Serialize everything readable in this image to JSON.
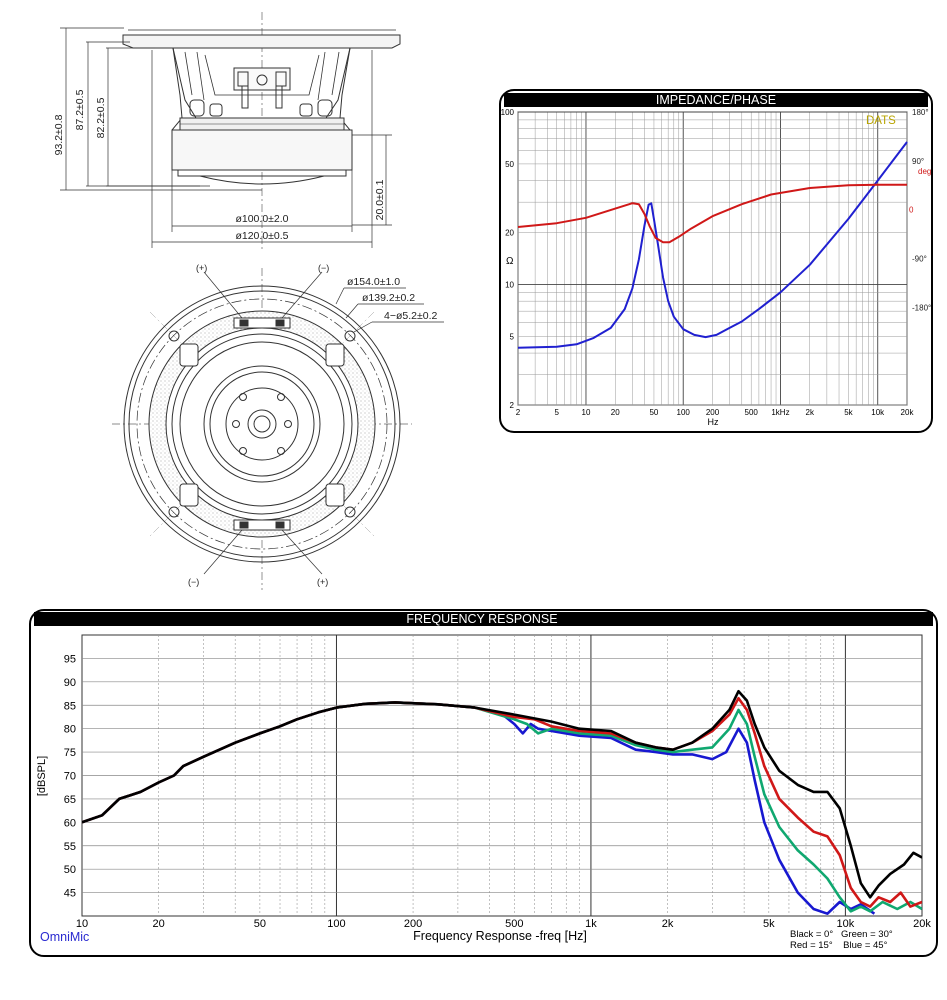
{
  "drawing": {
    "side_dims": {
      "height_total": "93.2±0.8",
      "height_mid": "87.2±0.5",
      "height_inner": "82.2±0.5",
      "magnet_height": "20.0±0.1",
      "magnet_dia": "ø100.0±2.0",
      "basket_dia": "ø120.0±0.5"
    },
    "front_dims": {
      "outer_dia": "ø154.0±1.0",
      "mount_dia": "ø139.2±0.2",
      "holes": "4−ø5.2±0.2",
      "term_plus": "(+)",
      "term_minus": "(−)"
    }
  },
  "chart_data": [
    {
      "type": "line",
      "title": "IMPEDANCE/PHASE",
      "brand": "DATS",
      "xlabel": "Hz",
      "ylabel": "Ω",
      "x_scale": "log",
      "xlim": [
        2,
        20000
      ],
      "ylim": [
        2,
        100
      ],
      "y_scale": "log",
      "x_ticks": [
        {
          "v": 2,
          "label": "2"
        },
        {
          "v": 5,
          "label": "5"
        },
        {
          "v": 10,
          "label": "10"
        },
        {
          "v": 20,
          "label": "20"
        },
        {
          "v": 50,
          "label": "50"
        },
        {
          "v": 100,
          "label": "100"
        },
        {
          "v": 200,
          "label": "200"
        },
        {
          "v": 500,
          "label": "500"
        },
        {
          "v": 1000,
          "label": "1kHz"
        },
        {
          "v": 2000,
          "label": "2k"
        },
        {
          "v": 5000,
          "label": "5k"
        },
        {
          "v": 10000,
          "label": "10k"
        },
        {
          "v": 20000,
          "label": "20k"
        }
      ],
      "y_ticks": [
        {
          "v": 2,
          "label": "2"
        },
        {
          "v": 5,
          "label": "5"
        },
        {
          "v": 10,
          "label": "10"
        },
        {
          "v": 20,
          "label": "20"
        },
        {
          "v": 50,
          "label": "50"
        },
        {
          "v": 100,
          "label": "100"
        }
      ],
      "phase_ticks": [
        {
          "v": 180,
          "label": "180°"
        },
        {
          "v": 90,
          "label": "90°"
        },
        {
          "v": 0,
          "label": "0"
        },
        {
          "v": -90,
          "label": "-90°"
        },
        {
          "v": -180,
          "label": "-180°"
        }
      ],
      "phase_unit": "deg",
      "phase_lim": [
        -360,
        180
      ],
      "grid": true,
      "series": [
        {
          "id": "impedance",
          "color": "#2020d0",
          "axis": "ohm",
          "points": [
            [
              2,
              4.3
            ],
            [
              5,
              4.35
            ],
            [
              8,
              4.5
            ],
            [
              12,
              4.9
            ],
            [
              18,
              5.6
            ],
            [
              25,
              7.2
            ],
            [
              30,
              9.5
            ],
            [
              35,
              14
            ],
            [
              40,
              22
            ],
            [
              44,
              29
            ],
            [
              47,
              29.5
            ],
            [
              50,
              24
            ],
            [
              55,
              17
            ],
            [
              62,
              11
            ],
            [
              70,
              8
            ],
            [
              80,
              6.5
            ],
            [
              100,
              5.5
            ],
            [
              130,
              5.1
            ],
            [
              170,
              4.95
            ],
            [
              220,
              5.1
            ],
            [
              300,
              5.6
            ],
            [
              400,
              6.1
            ],
            [
              600,
              7.2
            ],
            [
              1000,
              9
            ],
            [
              2000,
              13
            ],
            [
              5000,
              24
            ],
            [
              10000,
              40
            ],
            [
              20000,
              67
            ]
          ]
        },
        {
          "id": "phase",
          "color": "#d01818",
          "axis": "deg",
          "points": [
            [
              2,
              -32
            ],
            [
              5,
              -25
            ],
            [
              10,
              -15
            ],
            [
              20,
              2
            ],
            [
              30,
              12
            ],
            [
              35,
              10
            ],
            [
              40,
              -8
            ],
            [
              45,
              -30
            ],
            [
              52,
              -52
            ],
            [
              62,
              -60
            ],
            [
              72,
              -60
            ],
            [
              90,
              -50
            ],
            [
              120,
              -35
            ],
            [
              200,
              -12
            ],
            [
              400,
              10
            ],
            [
              800,
              28
            ],
            [
              2000,
              40
            ],
            [
              5000,
              45
            ],
            [
              10000,
              46
            ],
            [
              20000,
              46
            ]
          ]
        }
      ]
    },
    {
      "type": "line",
      "title": "FREQUENCY RESPONSE",
      "xlabel": "Frequency Response -freq [Hz]",
      "ylabel": "[dBSPL]",
      "brand": "OmniMic",
      "x_scale": "log",
      "xlim": [
        10,
        20000
      ],
      "ylim": [
        40,
        100
      ],
      "x_ticks": [
        {
          "v": 10,
          "label": "10"
        },
        {
          "v": 20,
          "label": "20"
        },
        {
          "v": 50,
          "label": "50"
        },
        {
          "v": 100,
          "label": "100"
        },
        {
          "v": 200,
          "label": "200"
        },
        {
          "v": 500,
          "label": "500"
        },
        {
          "v": 1000,
          "label": "1k"
        },
        {
          "v": 2000,
          "label": "2k"
        },
        {
          "v": 5000,
          "label": "5k"
        },
        {
          "v": 10000,
          "label": "10k"
        },
        {
          "v": 20000,
          "label": "20k"
        }
      ],
      "y_ticks": [
        45,
        50,
        55,
        60,
        65,
        70,
        75,
        80,
        85,
        90,
        95
      ],
      "legend_line1": "Black = 0°   Green = 30°",
      "legend_line2": "Red = 15°    Blue = 45°",
      "legend_position": "bottom-right",
      "grid": true,
      "series": [
        {
          "name": "0°",
          "color": "#000000",
          "points": [
            [
              10,
              60
            ],
            [
              12,
              61.5
            ],
            [
              14,
              65
            ],
            [
              17,
              66.5
            ],
            [
              20,
              68.5
            ],
            [
              23,
              70
            ],
            [
              25,
              72
            ],
            [
              30,
              74
            ],
            [
              40,
              77
            ],
            [
              50,
              79
            ],
            [
              60,
              80.5
            ],
            [
              70,
              82
            ],
            [
              85,
              83.5
            ],
            [
              100,
              84.5
            ],
            [
              130,
              85.3
            ],
            [
              170,
              85.6
            ],
            [
              250,
              85.2
            ],
            [
              350,
              84.5
            ],
            [
              500,
              83
            ],
            [
              700,
              81.5
            ],
            [
              900,
              80
            ],
            [
              1200,
              79.5
            ],
            [
              1500,
              77
            ],
            [
              1800,
              76
            ],
            [
              2100,
              75.5
            ],
            [
              2500,
              77
            ],
            [
              3000,
              80
            ],
            [
              3500,
              84
            ],
            [
              3800,
              88
            ],
            [
              4100,
              86
            ],
            [
              4400,
              81
            ],
            [
              4800,
              76
            ],
            [
              5500,
              71
            ],
            [
              6500,
              68
            ],
            [
              7500,
              66.5
            ],
            [
              8500,
              66.5
            ],
            [
              9500,
              63
            ],
            [
              10500,
              55
            ],
            [
              11500,
              47
            ],
            [
              12500,
              44
            ],
            [
              13500,
              46.5
            ],
            [
              15000,
              49
            ],
            [
              17000,
              51
            ],
            [
              18500,
              53.5
            ],
            [
              20000,
              52.5
            ]
          ]
        },
        {
          "name": "15°",
          "color": "#d01818",
          "points": [
            [
              10,
              60
            ],
            [
              12,
              61.5
            ],
            [
              14,
              65
            ],
            [
              17,
              66.5
            ],
            [
              20,
              68.5
            ],
            [
              23,
              70
            ],
            [
              25,
              72
            ],
            [
              30,
              74
            ],
            [
              40,
              77
            ],
            [
              50,
              79
            ],
            [
              60,
              80.5
            ],
            [
              70,
              82
            ],
            [
              85,
              83.5
            ],
            [
              100,
              84.5
            ],
            [
              130,
              85.3
            ],
            [
              170,
              85.6
            ],
            [
              250,
              85.2
            ],
            [
              350,
              84.5
            ],
            [
              500,
              82.5
            ],
            [
              600,
              82
            ],
            [
              700,
              80.5
            ],
            [
              900,
              79.5
            ],
            [
              1200,
              79
            ],
            [
              1500,
              77
            ],
            [
              1800,
              76
            ],
            [
              2100,
              75.5
            ],
            [
              2500,
              77
            ],
            [
              3000,
              79.5
            ],
            [
              3500,
              83
            ],
            [
              3800,
              86.5
            ],
            [
              4100,
              84
            ],
            [
              4400,
              79
            ],
            [
              4800,
              72
            ],
            [
              5500,
              65
            ],
            [
              6500,
              61
            ],
            [
              7500,
              58
            ],
            [
              8500,
              57
            ],
            [
              9500,
              53
            ],
            [
              10500,
              46
            ],
            [
              11500,
              43
            ],
            [
              12500,
              42
            ],
            [
              13500,
              44
            ],
            [
              15000,
              43
            ],
            [
              16500,
              45
            ],
            [
              18000,
              42
            ],
            [
              20000,
              43
            ]
          ]
        },
        {
          "name": "30°",
          "color": "#10a870",
          "points": [
            [
              10,
              60
            ],
            [
              12,
              61.5
            ],
            [
              14,
              65
            ],
            [
              17,
              66.5
            ],
            [
              20,
              68.5
            ],
            [
              23,
              70
            ],
            [
              25,
              72
            ],
            [
              30,
              74
            ],
            [
              40,
              77
            ],
            [
              50,
              79
            ],
            [
              60,
              80.5
            ],
            [
              70,
              82
            ],
            [
              85,
              83.5
            ],
            [
              100,
              84.5
            ],
            [
              130,
              85.3
            ],
            [
              170,
              85.6
            ],
            [
              250,
              85.2
            ],
            [
              350,
              84.5
            ],
            [
              500,
              82
            ],
            [
              560,
              81
            ],
            [
              620,
              79
            ],
            [
              700,
              80
            ],
            [
              900,
              79
            ],
            [
              1200,
              78.5
            ],
            [
              1500,
              76.5
            ],
            [
              1800,
              75.5
            ],
            [
              2100,
              75
            ],
            [
              2500,
              75.5
            ],
            [
              3000,
              76
            ],
            [
              3500,
              80
            ],
            [
              3800,
              84
            ],
            [
              4100,
              81
            ],
            [
              4400,
              74
            ],
            [
              4800,
              66
            ],
            [
              5500,
              59
            ],
            [
              6500,
              54
            ],
            [
              7500,
              51
            ],
            [
              8500,
              48
            ],
            [
              9500,
              44
            ],
            [
              10500,
              41
            ],
            [
              11500,
              42
            ],
            [
              12500,
              41
            ],
            [
              14000,
              43
            ],
            [
              16000,
              41.5
            ],
            [
              18000,
              43
            ],
            [
              20000,
              41.5
            ]
          ]
        },
        {
          "name": "45°",
          "color": "#1818d0",
          "points": [
            [
              10,
              60
            ],
            [
              12,
              61.5
            ],
            [
              14,
              65
            ],
            [
              17,
              66.5
            ],
            [
              20,
              68.5
            ],
            [
              23,
              70
            ],
            [
              25,
              72
            ],
            [
              30,
              74
            ],
            [
              40,
              77
            ],
            [
              50,
              79
            ],
            [
              60,
              80.5
            ],
            [
              70,
              82
            ],
            [
              85,
              83.5
            ],
            [
              100,
              84.5
            ],
            [
              130,
              85.3
            ],
            [
              170,
              85.6
            ],
            [
              250,
              85.2
            ],
            [
              350,
              84.5
            ],
            [
              450,
              83
            ],
            [
              500,
              81
            ],
            [
              540,
              79
            ],
            [
              580,
              81
            ],
            [
              620,
              80
            ],
            [
              700,
              79.5
            ],
            [
              900,
              78.5
            ],
            [
              1200,
              78
            ],
            [
              1500,
              75.5
            ],
            [
              1800,
              75
            ],
            [
              2100,
              74.5
            ],
            [
              2500,
              74.5
            ],
            [
              3000,
              73.5
            ],
            [
              3400,
              75
            ],
            [
              3800,
              80
            ],
            [
              4100,
              77
            ],
            [
              4400,
              69
            ],
            [
              4800,
              60
            ],
            [
              5500,
              52
            ],
            [
              6500,
              45
            ],
            [
              7500,
              41.5
            ],
            [
              8500,
              40.5
            ],
            [
              9500,
              43
            ],
            [
              10500,
              41.5
            ],
            [
              11500,
              42.5
            ],
            [
              13000,
              40.5
            ]
          ]
        }
      ]
    }
  ]
}
